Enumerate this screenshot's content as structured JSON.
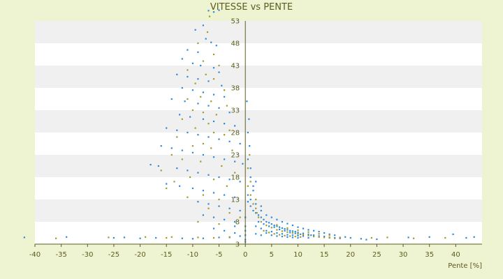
{
  "chart_data": {
    "type": "scatter",
    "title": "VITESSE vs PENTE",
    "xlabel": "Pente [%]",
    "ylabel": "",
    "xlim": [
      -40,
      45
    ],
    "ylim": [
      3,
      55.5
    ],
    "x_ticks": [
      "-40",
      "-35",
      "-30",
      "-25",
      "-20",
      "-15",
      "-10",
      "-5",
      "0",
      "5",
      "10",
      "15",
      "20",
      "25",
      "30",
      "35",
      "40"
    ],
    "y_ticks": [
      "3",
      "8",
      "13",
      "18",
      "23",
      "28",
      "33",
      "38",
      "43",
      "48",
      "53"
    ],
    "grid": true,
    "legend": "none",
    "colors": {
      "background": "#eef3d2",
      "band_light": "#ffffff",
      "band_dark": "#f0f0f0",
      "series_blue": "#2e8ad8",
      "series_olive": "#a29a2a",
      "text": "#5c5c1e",
      "axis": "#5c5c1e"
    },
    "series": [
      {
        "color": "#2e8ad8",
        "points": [
          [
            -7,
            55.3
          ],
          [
            -6,
            55.0
          ],
          [
            -5,
            55.4
          ],
          [
            -9.5,
            51
          ],
          [
            -8,
            52
          ],
          [
            -7.5,
            49
          ],
          [
            -6.5,
            48.2
          ],
          [
            -5.5,
            47.5
          ],
          [
            -11,
            46.5
          ],
          [
            -9,
            46
          ],
          [
            -12,
            44.5
          ],
          [
            -10,
            43.5
          ],
          [
            -8.5,
            43
          ],
          [
            -6,
            42.5
          ],
          [
            -5,
            41.5
          ],
          [
            -13,
            41
          ],
          [
            -11,
            40.5
          ],
          [
            -9,
            40
          ],
          [
            -7,
            39.5
          ],
          [
            -4.5,
            38.5
          ],
          [
            -12,
            38
          ],
          [
            -10,
            37.5
          ],
          [
            -8,
            37
          ],
          [
            -6,
            36.5
          ],
          [
            -4,
            36
          ],
          [
            -14,
            35.5
          ],
          [
            -11.5,
            35
          ],
          [
            -9,
            34.5
          ],
          [
            -7,
            34
          ],
          [
            -5,
            33.5
          ],
          [
            -3,
            32.5
          ],
          [
            -12.5,
            32
          ],
          [
            -10.5,
            31.5
          ],
          [
            -8,
            31
          ],
          [
            -6,
            30.5
          ],
          [
            -4,
            30
          ],
          [
            -2,
            29.5
          ],
          [
            -15,
            29
          ],
          [
            -13,
            28.5
          ],
          [
            -11,
            28
          ],
          [
            -9,
            27.5
          ],
          [
            -7,
            27
          ],
          [
            -5,
            26.5
          ],
          [
            -3,
            26
          ],
          [
            -1,
            25.5
          ],
          [
            -16,
            25
          ],
          [
            -14,
            24.5
          ],
          [
            -12,
            24
          ],
          [
            -10,
            23.5
          ],
          [
            -8,
            23
          ],
          [
            -6,
            22.5
          ],
          [
            -4,
            22
          ],
          [
            -2,
            21.5
          ],
          [
            -0.5,
            21
          ],
          [
            -18,
            20.8
          ],
          [
            -16.5,
            20.5
          ],
          [
            -13,
            20
          ],
          [
            -11,
            19.5
          ],
          [
            -9,
            19
          ],
          [
            -7,
            18.5
          ],
          [
            -5,
            18
          ],
          [
            -3,
            17.5
          ],
          [
            -1,
            17
          ],
          [
            -15,
            16.5
          ],
          [
            -12.5,
            16
          ],
          [
            -10,
            15.5
          ],
          [
            -8,
            15
          ],
          [
            -6,
            14.5
          ],
          [
            -4,
            14
          ],
          [
            -2,
            13.5
          ],
          [
            -9,
            12.5
          ],
          [
            -7,
            12
          ],
          [
            -5,
            11.5
          ],
          [
            -3,
            11
          ],
          [
            -1,
            10.5
          ],
          [
            -8,
            9.5
          ],
          [
            -6,
            9
          ],
          [
            -4,
            8.5
          ],
          [
            -2,
            8
          ],
          [
            -6,
            6.5
          ],
          [
            -4,
            6
          ],
          [
            -2,
            5.5
          ],
          [
            -1,
            4.8
          ],
          [
            -3,
            4.5
          ],
          [
            -5,
            4.5
          ],
          [
            -8,
            4.3
          ],
          [
            -10,
            4.2
          ],
          [
            -2,
            7
          ],
          [
            0.5,
            22
          ],
          [
            0.8,
            25
          ],
          [
            1,
            18
          ],
          [
            1.5,
            15
          ],
          [
            0.5,
            12.5
          ],
          [
            1,
            11.5
          ],
          [
            1.5,
            10.5
          ],
          [
            2,
            10
          ],
          [
            2.5,
            9.5
          ],
          [
            3,
            9
          ],
          [
            3.5,
            8.5
          ],
          [
            4,
            8
          ],
          [
            4.5,
            7.8
          ],
          [
            5,
            7.5
          ],
          [
            5.5,
            7.2
          ],
          [
            6,
            7
          ],
          [
            6.5,
            6.8
          ],
          [
            7,
            6.6
          ],
          [
            7.5,
            6.4
          ],
          [
            8,
            6.2
          ],
          [
            8.5,
            6
          ],
          [
            9,
            5.9
          ],
          [
            9.5,
            5.8
          ],
          [
            10,
            5.6
          ],
          [
            11,
            5.4
          ],
          [
            12,
            5.2
          ],
          [
            13,
            5
          ],
          [
            14,
            4.8
          ],
          [
            15,
            4.7
          ],
          [
            16,
            4.5
          ],
          [
            17,
            4.4
          ],
          [
            18,
            4.3
          ],
          [
            2,
            7
          ],
          [
            3,
            6.5
          ],
          [
            4,
            6
          ],
          [
            5,
            5.8
          ],
          [
            6,
            5.5
          ],
          [
            7,
            5.3
          ],
          [
            8,
            5.1
          ],
          [
            9,
            5
          ],
          [
            10,
            4.9
          ],
          [
            11,
            4.8
          ],
          [
            2.5,
            8
          ],
          [
            3.5,
            7.5
          ],
          [
            4.5,
            7
          ],
          [
            5.5,
            6.8
          ],
          [
            6.5,
            6.3
          ],
          [
            7.5,
            6
          ],
          [
            8.5,
            5.6
          ],
          [
            9.5,
            5.4
          ],
          [
            10.5,
            5.2
          ],
          [
            12.5,
            5
          ],
          [
            3,
            10.5
          ],
          [
            4,
            9.5
          ],
          [
            5,
            9
          ],
          [
            6,
            8.5
          ],
          [
            7,
            8
          ],
          [
            8,
            7.6
          ],
          [
            9,
            7.2
          ],
          [
            10,
            6.8
          ],
          [
            11,
            6.5
          ],
          [
            12,
            6.2
          ],
          [
            13,
            6
          ],
          [
            14,
            5.8
          ],
          [
            15,
            5.5
          ],
          [
            16,
            5.2
          ],
          [
            17,
            5
          ],
          [
            19,
            4.6
          ],
          [
            20,
            4.4
          ],
          [
            22,
            4.2
          ],
          [
            23,
            4
          ],
          [
            25,
            4.1
          ],
          [
            1,
            13
          ],
          [
            2,
            12
          ],
          [
            3,
            11.5
          ],
          [
            1.5,
            16
          ],
          [
            2,
            17
          ],
          [
            0.5,
            28
          ],
          [
            0.7,
            31
          ],
          [
            1,
            20
          ],
          [
            0.3,
            35
          ],
          [
            0.5,
            14
          ],
          [
            4,
            5.5
          ],
          [
            5,
            5
          ],
          [
            6,
            4.8
          ],
          [
            7,
            4.7
          ],
          [
            8,
            4.6
          ],
          [
            9,
            4.5
          ],
          [
            10,
            4.4
          ],
          [
            3,
            5
          ],
          [
            2,
            5.3
          ],
          [
            12,
            4.4
          ],
          [
            -42,
            4.5
          ],
          [
            -34,
            4.6
          ],
          [
            -25,
            4.4
          ],
          [
            -23,
            4.5
          ],
          [
            -20,
            4.3
          ],
          [
            -17,
            4.4
          ],
          [
            -12,
            4.3
          ],
          [
            31,
            4.5
          ],
          [
            35,
            4.6
          ],
          [
            39.5,
            5.2
          ],
          [
            42,
            4.4
          ],
          [
            43.5,
            4.6
          ],
          [
            0,
            3.5
          ],
          [
            0,
            4
          ],
          [
            0,
            5
          ],
          [
            0,
            6
          ],
          [
            0,
            7
          ],
          [
            0,
            9
          ]
        ]
      },
      {
        "color": "#a29a2a",
        "points": [
          [
            -6.8,
            54
          ],
          [
            -7.2,
            50.5
          ],
          [
            -9,
            48
          ],
          [
            -6,
            45.5
          ],
          [
            -8,
            44
          ],
          [
            -5,
            43
          ],
          [
            -11,
            42
          ],
          [
            -7.5,
            41
          ],
          [
            -6,
            40
          ],
          [
            -9.5,
            39
          ],
          [
            -4,
            37.5
          ],
          [
            -8.5,
            36
          ],
          [
            -11,
            35.5
          ],
          [
            -6.5,
            35
          ],
          [
            -3.5,
            34
          ],
          [
            -10,
            33
          ],
          [
            -8,
            32.5
          ],
          [
            -5.5,
            32
          ],
          [
            -12,
            31
          ],
          [
            -7,
            30
          ],
          [
            -3,
            28.5
          ],
          [
            -9.5,
            29
          ],
          [
            -6,
            28
          ],
          [
            -13,
            27
          ],
          [
            -4,
            27.5
          ],
          [
            -8,
            25.5
          ],
          [
            -10,
            25
          ],
          [
            -2.5,
            24
          ],
          [
            -14,
            23
          ],
          [
            -6.5,
            24.5
          ],
          [
            -12,
            22
          ],
          [
            -8.5,
            21.5
          ],
          [
            -4.5,
            20.5
          ],
          [
            -16,
            19.5
          ],
          [
            -2,
            19
          ],
          [
            -10.5,
            18
          ],
          [
            -6,
            17.5
          ],
          [
            -13.5,
            17
          ],
          [
            -3.5,
            16
          ],
          [
            -8,
            14
          ],
          [
            -5,
            13
          ],
          [
            -11,
            13.5
          ],
          [
            -7,
            11
          ],
          [
            -3,
            10
          ],
          [
            -9,
            8
          ],
          [
            -5,
            7.5
          ],
          [
            -1,
            9
          ],
          [
            -15,
            15.5
          ],
          [
            0.5,
            16
          ],
          [
            1,
            14
          ],
          [
            2,
            11
          ],
          [
            2.5,
            9
          ],
          [
            3,
            8
          ],
          [
            4,
            7.2
          ],
          [
            5,
            6.7
          ],
          [
            6,
            6.2
          ],
          [
            7,
            5.9
          ],
          [
            8,
            5.7
          ],
          [
            9,
            5.5
          ],
          [
            10,
            5.3
          ],
          [
            11,
            5.1
          ],
          [
            12,
            4.9
          ],
          [
            13,
            4.7
          ],
          [
            14,
            4.6
          ],
          [
            15,
            4.5
          ],
          [
            16,
            4.4
          ],
          [
            17,
            4.3
          ],
          [
            18,
            4.5
          ],
          [
            3.5,
            6
          ],
          [
            4.5,
            5.6
          ],
          [
            5.5,
            5.3
          ],
          [
            6.5,
            5.1
          ],
          [
            7.5,
            4.9
          ],
          [
            8.5,
            4.8
          ],
          [
            9.5,
            4.7
          ],
          [
            10.5,
            4.6
          ],
          [
            6,
            7.3
          ],
          [
            8,
            6.6
          ],
          [
            10,
            6.1
          ],
          [
            12,
            5.7
          ],
          [
            14,
            5.3
          ],
          [
            16,
            5
          ],
          [
            2,
            13
          ],
          [
            1,
            17
          ],
          [
            0.5,
            20
          ],
          [
            -36,
            4.3
          ],
          [
            -26,
            4.5
          ],
          [
            -19,
            4.6
          ],
          [
            -15,
            4.4
          ],
          [
            -14,
            4.6
          ],
          [
            -9,
            4.5
          ],
          [
            -6,
            4.4
          ],
          [
            -3,
            4.6
          ],
          [
            24,
            4.4
          ],
          [
            27,
            4.5
          ],
          [
            32,
            4.3
          ],
          [
            38,
            4.4
          ],
          [
            1.5,
            12
          ],
          [
            2.2,
            10
          ],
          [
            0.8,
            23
          ]
        ]
      }
    ]
  }
}
